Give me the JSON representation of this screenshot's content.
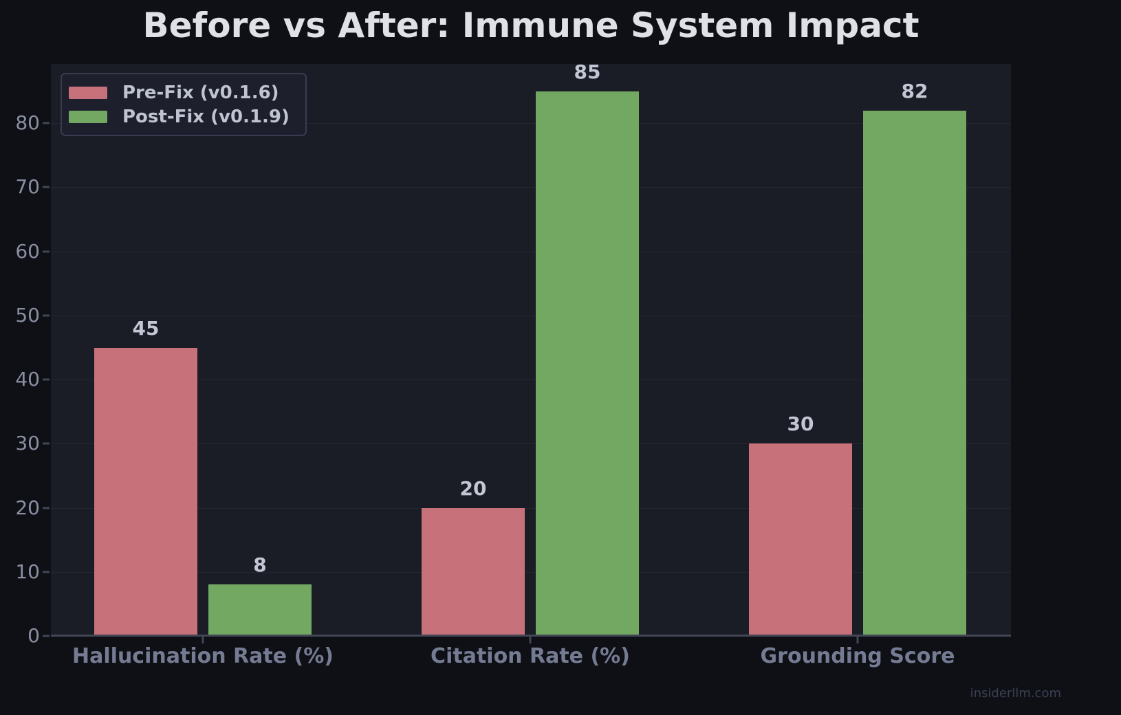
{
  "title": "Before vs After: Immune System Impact",
  "watermark": "insiderllm.com",
  "theme": {
    "background": "#0e1016",
    "plot_background": "#1a1c26",
    "gridline": "#242632",
    "axis": "#434655",
    "title_color": "#e0e1e6",
    "ytick_color": "#8a8fa1",
    "xlabel_color": "#757b92",
    "value_label_color": "#c3c7d4",
    "legend_background": "#1d1f2c",
    "legend_border": "#393c51",
    "legend_text": "#c0c4d2",
    "watermark_color": "#3c4153"
  },
  "chart_data": {
    "type": "bar",
    "title": "Before vs After: Immune System Impact",
    "categories": [
      "Hallucination Rate (%)",
      "Citation Rate (%)",
      "Grounding Score"
    ],
    "series": [
      {
        "name": "Pre-Fix (v0.1.6)",
        "color": "#c7717a",
        "values": [
          45,
          20,
          30
        ]
      },
      {
        "name": "Post-Fix (v0.1.9)",
        "color": "#72a862",
        "values": [
          8,
          85,
          82
        ]
      }
    ],
    "xlabel": "",
    "ylabel": "",
    "ylim": [
      0,
      89.25
    ],
    "yticks": [
      0,
      10,
      20,
      30,
      40,
      50,
      60,
      70,
      80
    ],
    "grid": "horizontal",
    "legend_position": "upper-left",
    "value_labels": true
  }
}
